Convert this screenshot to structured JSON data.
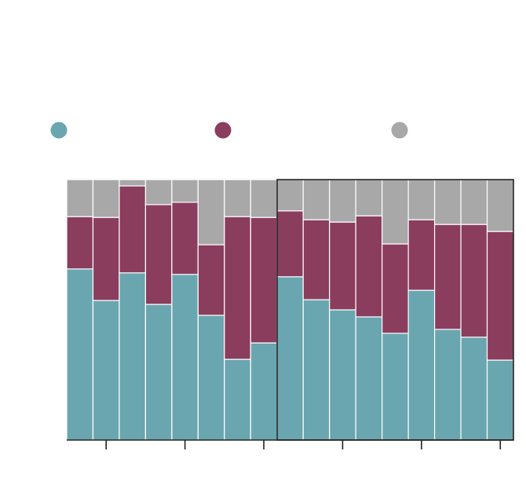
{
  "chart_data": {
    "type": "stacked-bar-100",
    "categories": [
      null,
      null,
      null,
      null,
      null,
      null,
      null,
      null,
      null,
      null,
      null,
      null,
      null,
      null,
      null,
      null,
      null
    ],
    "series": [
      {
        "color": "#6aa6b0",
        "values": [
          65.7,
          53.6,
          64.2,
          52.1,
          63.6,
          47.9,
          31.0,
          37.3,
          62.7,
          53.9,
          50.0,
          47.3,
          41.0,
          57.5,
          42.5,
          39.5,
          30.7
        ]
      },
      {
        "color": "#8b3d5e",
        "values": [
          20.1,
          31.9,
          33.4,
          38.3,
          27.7,
          27.1,
          54.8,
          48.2,
          25.3,
          30.7,
          33.7,
          38.8,
          34.3,
          27.1,
          40.3,
          43.3,
          49.4
        ]
      },
      {
        "color": "#a8a8a8",
        "values": [
          14.2,
          14.5,
          2.4,
          9.6,
          8.7,
          25.0,
          14.2,
          14.5,
          12.0,
          15.4,
          16.3,
          13.9,
          24.7,
          15.4,
          17.2,
          17.2,
          19.9
        ]
      }
    ],
    "ylim": [
      0,
      100
    ]
  }
}
